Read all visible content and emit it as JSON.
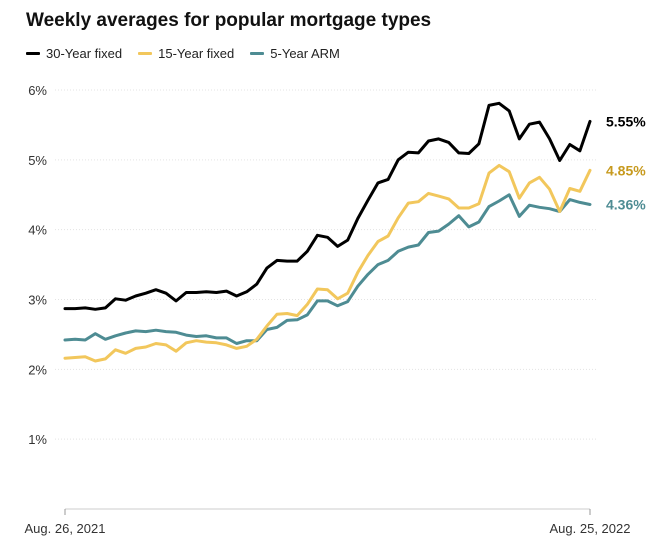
{
  "chart_data": {
    "type": "line",
    "title": "Weekly averages for popular mortgage types",
    "xlabel": "",
    "ylabel": "",
    "x_range": [
      "Aug. 26, 2021",
      "Aug. 25, 2022"
    ],
    "x_tick_labels": [
      "Aug. 26, 2021",
      "Aug. 25, 2022"
    ],
    "ylim": [
      0,
      6
    ],
    "y_ticks": [
      1,
      2,
      3,
      4,
      5,
      6
    ],
    "y_tick_labels": [
      "1%",
      "2%",
      "3%",
      "4%",
      "5%",
      "6%"
    ],
    "grid": true,
    "legend_position": "top-left",
    "series": [
      {
        "name": "30-Year fixed",
        "color": "#000000",
        "end_label": "5.55%",
        "values": [
          2.87,
          2.87,
          2.88,
          2.86,
          2.88,
          3.01,
          2.99,
          3.05,
          3.09,
          3.14,
          3.09,
          2.98,
          3.1,
          3.1,
          3.11,
          3.1,
          3.12,
          3.05,
          3.11,
          3.22,
          3.45,
          3.56,
          3.55,
          3.55,
          3.69,
          3.92,
          3.89,
          3.76,
          3.85,
          4.16,
          4.42,
          4.67,
          4.72,
          5.0,
          5.11,
          5.1,
          5.27,
          5.3,
          5.25,
          5.1,
          5.09,
          5.23,
          5.78,
          5.81,
          5.7,
          5.3,
          5.51,
          5.54,
          5.3,
          4.99,
          5.22,
          5.13,
          5.55
        ]
      },
      {
        "name": "15-Year fixed",
        "color": "#f2c75c",
        "end_label": "4.85%",
        "values": [
          2.16,
          2.17,
          2.18,
          2.12,
          2.15,
          2.28,
          2.23,
          2.3,
          2.32,
          2.37,
          2.35,
          2.26,
          2.38,
          2.41,
          2.39,
          2.38,
          2.35,
          2.3,
          2.33,
          2.43,
          2.62,
          2.79,
          2.8,
          2.77,
          2.93,
          3.15,
          3.14,
          3.01,
          3.09,
          3.39,
          3.63,
          3.83,
          3.91,
          4.17,
          4.38,
          4.4,
          4.52,
          4.48,
          4.44,
          4.31,
          4.31,
          4.37,
          4.81,
          4.92,
          4.83,
          4.45,
          4.67,
          4.75,
          4.58,
          4.26,
          4.59,
          4.55,
          4.85
        ]
      },
      {
        "name": "5-Year ARM",
        "color": "#4e8c93",
        "end_label": "4.36%",
        "values": [
          2.42,
          2.43,
          2.42,
          2.51,
          2.43,
          2.48,
          2.52,
          2.55,
          2.54,
          2.56,
          2.54,
          2.53,
          2.49,
          2.47,
          2.48,
          2.45,
          2.45,
          2.37,
          2.41,
          2.41,
          2.57,
          2.6,
          2.7,
          2.71,
          2.78,
          2.98,
          2.98,
          2.91,
          2.97,
          3.19,
          3.36,
          3.5,
          3.56,
          3.69,
          3.75,
          3.78,
          3.96,
          3.98,
          4.08,
          4.2,
          4.04,
          4.11,
          4.33,
          4.41,
          4.5,
          4.19,
          4.35,
          4.32,
          4.3,
          4.26,
          4.43,
          4.39,
          4.36
        ]
      }
    ]
  }
}
